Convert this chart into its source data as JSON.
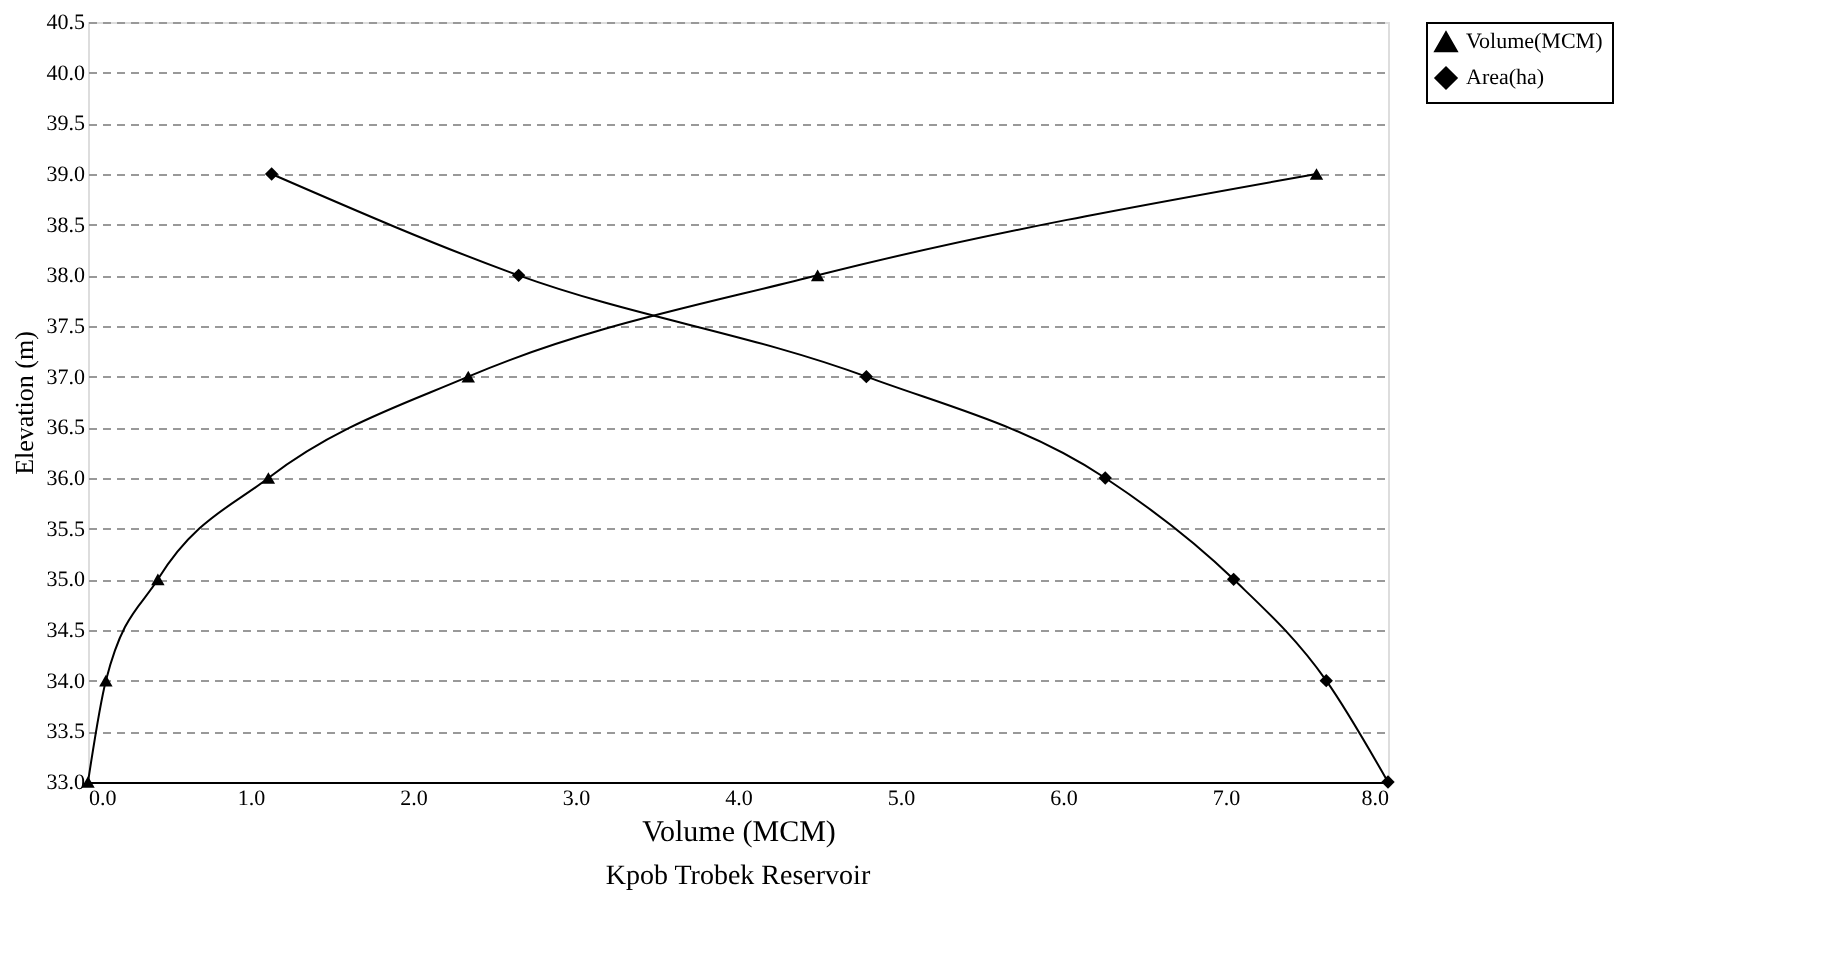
{
  "chart_data": {
    "type": "line",
    "xlabel": "Volume (MCM)",
    "ylabel": "Elevation (m)",
    "annotations": [
      "Kpob Trobek Reservoir"
    ],
    "series": [
      {
        "name": "Volume(MCM)",
        "color": "#000000",
        "marker": "triangle",
        "x": [
          0.0,
          0.11,
          0.43,
          1.11,
          2.34,
          4.49,
          7.56
        ],
        "values": [
          33,
          34,
          35,
          36,
          37,
          38,
          39
        ]
      },
      {
        "name": "Area(ha)",
        "color": "#000000",
        "marker": "diamond",
        "x": [
          1.13,
          2.65,
          4.79,
          6.26,
          7.05,
          7.62,
          8.0
        ],
        "values": [
          39,
          38,
          37,
          36,
          35,
          34,
          33
        ]
      }
    ],
    "xlim": [
      0,
      8
    ],
    "ylim": [
      33,
      40.5
    ],
    "xticks": [
      {
        "value": 0,
        "label": "0.0"
      },
      {
        "value": 1,
        "label": "1.0"
      },
      {
        "value": 2,
        "label": "2.0"
      },
      {
        "value": 3,
        "label": "3.0"
      },
      {
        "value": 4,
        "label": "4.0"
      },
      {
        "value": 5,
        "label": "5.0"
      },
      {
        "value": 6,
        "label": "6.0"
      },
      {
        "value": 7,
        "label": "7.0"
      },
      {
        "value": 8,
        "label": "8.0"
      }
    ],
    "yticks": [
      {
        "value": 33,
        "label": "33.0"
      },
      33.5,
      {
        "value": 34,
        "label": "34.0"
      },
      34.5,
      {
        "value": 35,
        "label": "35.0"
      },
      35.5,
      {
        "value": 36,
        "label": "36.0"
      },
      36.5,
      {
        "value": 37,
        "label": "37.0"
      },
      37.5,
      {
        "value": 38,
        "label": "38.0"
      },
      38.5,
      {
        "value": 39,
        "label": "39.0"
      },
      39.5,
      {
        "value": 40,
        "label": "40.0"
      },
      40.5
    ],
    "grid": "y",
    "legend": "top right",
    "line_style": "solid"
  }
}
